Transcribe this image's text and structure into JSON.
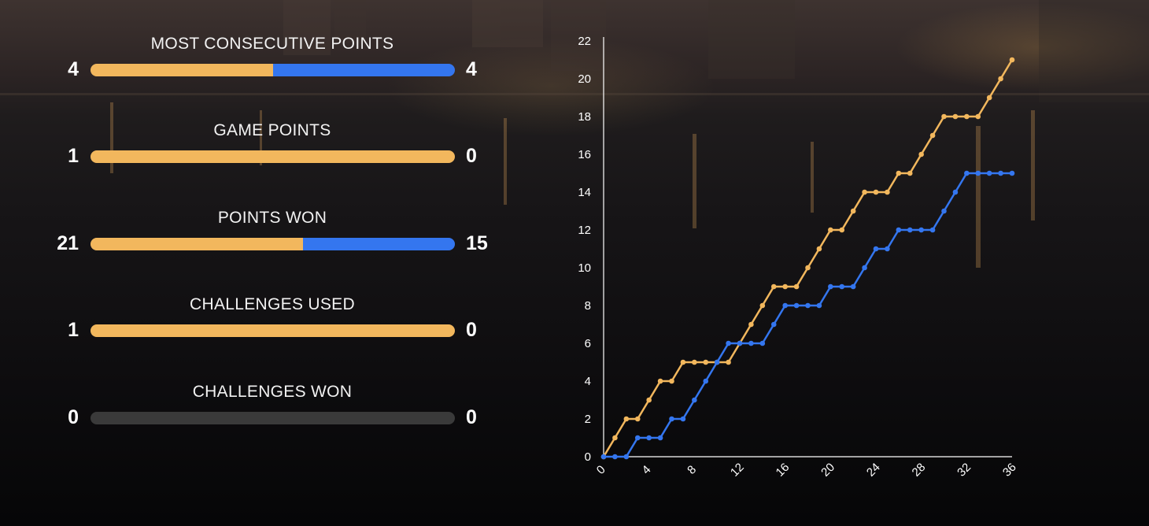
{
  "colors": {
    "player_a": "#f2b75d",
    "player_b": "#3476ef",
    "track": "#3a3a3a"
  },
  "stats": [
    {
      "title": "MOST CONSECUTIVE POINTS",
      "left": "4",
      "right": "4",
      "left_value": 4,
      "right_value": 4
    },
    {
      "title": "GAME POINTS",
      "left": "1",
      "right": "0",
      "left_value": 1,
      "right_value": 0
    },
    {
      "title": "POINTS WON",
      "left": "21",
      "right": "15",
      "left_value": 21,
      "right_value": 15
    },
    {
      "title": "CHALLENGES USED",
      "left": "1",
      "right": "0",
      "left_value": 1,
      "right_value": 0
    },
    {
      "title": "CHALLENGES WON",
      "left": "0",
      "right": "0",
      "left_value": 0,
      "right_value": 0
    }
  ],
  "chart_data": {
    "type": "line",
    "title": "",
    "xlabel": "",
    "ylabel": "",
    "xlim": [
      0,
      36
    ],
    "ylim": [
      0,
      22
    ],
    "x_ticks": [
      0,
      4,
      8,
      12,
      16,
      20,
      24,
      28,
      32,
      36
    ],
    "y_ticks": [
      0,
      2,
      4,
      6,
      8,
      10,
      12,
      14,
      16,
      18,
      20,
      22
    ],
    "grid": false,
    "legend": "none",
    "x": [
      0,
      1,
      2,
      3,
      4,
      5,
      6,
      7,
      8,
      9,
      10,
      11,
      12,
      13,
      14,
      15,
      16,
      17,
      18,
      19,
      20,
      21,
      22,
      23,
      24,
      25,
      26,
      27,
      28,
      29,
      30,
      31,
      32,
      33,
      34,
      35,
      36
    ],
    "series": [
      {
        "color": "#f2b75d",
        "values": [
          0,
          1,
          2,
          2,
          3,
          4,
          4,
          5,
          5,
          5,
          5,
          5,
          6,
          7,
          8,
          9,
          9,
          9,
          10,
          11,
          12,
          12,
          13,
          14,
          14,
          14,
          15,
          15,
          16,
          17,
          18,
          18,
          18,
          18,
          19,
          20,
          21
        ]
      },
      {
        "color": "#3476ef",
        "values": [
          0,
          0,
          0,
          1,
          1,
          1,
          2,
          2,
          3,
          4,
          5,
          6,
          6,
          6,
          6,
          7,
          8,
          8,
          8,
          8,
          9,
          9,
          9,
          10,
          11,
          11,
          12,
          12,
          12,
          12,
          13,
          14,
          15,
          15,
          15,
          15,
          15
        ]
      }
    ]
  }
}
